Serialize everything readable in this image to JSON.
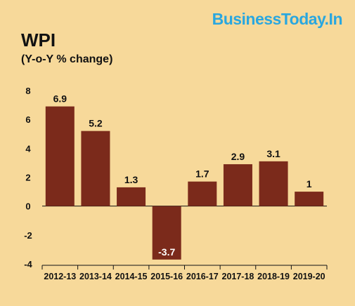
{
  "brand": "BusinessToday.In",
  "colors": {
    "background": "#f7d99a",
    "bar": "#7b2a1b",
    "brand": "#2aa7df"
  },
  "chart_data": {
    "type": "bar",
    "title": "WPI",
    "subtitle": "(Y-o-Y % change)",
    "categories": [
      "2012-13",
      "2013-14",
      "2014-15",
      "2015-16",
      "2016-17",
      "2017-18",
      "2018-19",
      "2019-20"
    ],
    "values": [
      6.9,
      5.2,
      1.3,
      -3.7,
      1.7,
      2.9,
      3.1,
      1
    ],
    "data_labels": [
      "6.9",
      "5.2",
      "1.3",
      "-3.7",
      "1.7",
      "2.9",
      "3.1",
      "1"
    ],
    "ylim": [
      -4,
      8
    ],
    "yticks": [
      8,
      6,
      4,
      2,
      0,
      -2,
      -4
    ],
    "grid": false,
    "legend": "none",
    "xlabel": "",
    "ylabel": ""
  }
}
